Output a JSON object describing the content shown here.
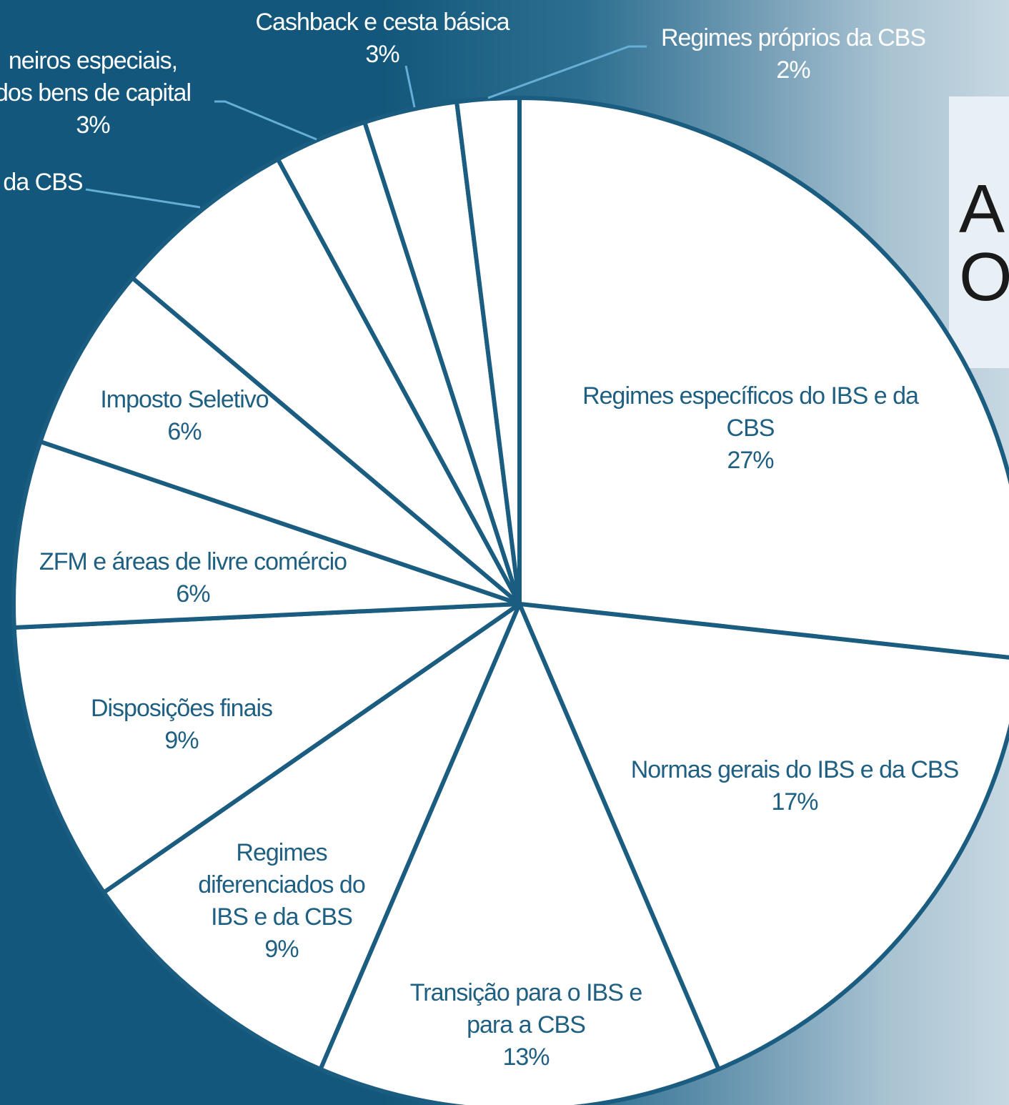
{
  "colors": {
    "background_dark": "#13587c",
    "background_light": "#c7d8e2",
    "slice_fill": "#ffffff",
    "slice_stroke": "#1b5d80",
    "label_on_slice": "#1e5f82",
    "label_on_background": "#ffffff",
    "leader_line": "#66aed6"
  },
  "title_card": {
    "line1": "A",
    "line2": "O"
  },
  "chart_data": {
    "type": "pie",
    "start": "12 o'clock",
    "direction": "clockwise",
    "legend": "none",
    "slices": [
      {
        "label_lines": [
          "Regimes específicos do IBS e da",
          "CBS"
        ],
        "pct_text": "27%",
        "value": 27
      },
      {
        "label_lines": [
          "Normas gerais do IBS e da CBS"
        ],
        "pct_text": "17%",
        "value": 17
      },
      {
        "label_lines": [
          "Transição para o IBS e",
          "para a CBS"
        ],
        "pct_text": "13%",
        "value": 13
      },
      {
        "label_lines": [
          "Regimes",
          "diferenciados do",
          "IBS e da CBS"
        ],
        "pct_text": "9%",
        "value": 9
      },
      {
        "label_lines": [
          "Disposições finais"
        ],
        "pct_text": "9%",
        "value": 9
      },
      {
        "label_lines": [
          "ZFM e áreas de livre comércio"
        ],
        "pct_text": "6%",
        "value": 6
      },
      {
        "label_lines": [
          "Imposto Seletivo"
        ],
        "pct_text": "6%",
        "value": 6
      },
      {
        "label_lines": [
          "da CBS"
        ],
        "pct_text": "",
        "value": 6
      },
      {
        "label_lines": [
          "neiros especiais,",
          "dos bens de capital"
        ],
        "pct_text": "3%",
        "value": 3
      },
      {
        "label_lines": [
          "Cashback e cesta básica"
        ],
        "pct_text": "3%",
        "value": 3
      },
      {
        "label_lines": [
          "Regimes próprios da CBS"
        ],
        "pct_text": "2%",
        "value": 2
      }
    ]
  }
}
